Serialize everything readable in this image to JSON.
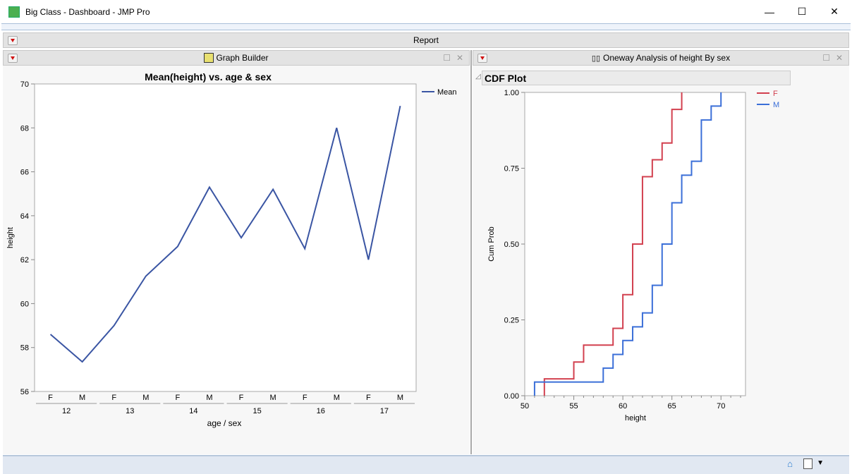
{
  "window": {
    "title": "Big Class - Dashboard - JMP Pro",
    "minimize": "—",
    "maximize": "☐",
    "close": "✕"
  },
  "report_bar": {
    "label": "Report"
  },
  "left_panel": {
    "title": "Graph Builder",
    "icon": "graph-builder-icon"
  },
  "right_panel": {
    "title": "Oneway Analysis of height By sex",
    "icon": "oneway-icon",
    "section": "CDF Plot"
  },
  "colors": {
    "mean_line": "#3a55a3",
    "F": "#d2404f",
    "M": "#3b6fd8"
  },
  "chart_data": [
    {
      "type": "line",
      "title": "Mean(height) vs. age & sex",
      "xlabel": "age / sex",
      "ylabel": "height",
      "ylim": [
        56,
        70
      ],
      "yticks": [
        56,
        58,
        60,
        62,
        64,
        66,
        68,
        70
      ],
      "groups": [
        "12",
        "13",
        "14",
        "15",
        "16",
        "17"
      ],
      "subcategories": [
        "F",
        "M"
      ],
      "series": [
        {
          "name": "Mean",
          "values": [
            58.6,
            57.35,
            59.0,
            61.25,
            62.6,
            65.3,
            63.0,
            65.2,
            62.5,
            68.0,
            62.0,
            69.0
          ]
        }
      ],
      "legend": "right"
    },
    {
      "type": "line",
      "step": true,
      "title": "CDF Plot",
      "xlabel": "height",
      "ylabel": "Cum Prob",
      "xlim": [
        50,
        72.5
      ],
      "ylim": [
        0,
        1
      ],
      "xticks": [
        50,
        55,
        60,
        65,
        70
      ],
      "yticks": [
        "0.00",
        "0.25",
        "0.50",
        "0.75",
        "1.00"
      ],
      "series": [
        {
          "name": "F",
          "points": [
            [
              52,
              0.0556
            ],
            [
              55,
              0.111
            ],
            [
              56,
              0.167
            ],
            [
              59,
              0.222
            ],
            [
              60,
              0.333
            ],
            [
              61,
              0.5
            ],
            [
              62,
              0.722
            ],
            [
              63,
              0.778
            ],
            [
              64,
              0.833
            ],
            [
              65,
              0.944
            ],
            [
              66,
              1.0
            ]
          ]
        },
        {
          "name": "M",
          "points": [
            [
              51,
              0.045
            ],
            [
              58,
              0.091
            ],
            [
              59,
              0.136
            ],
            [
              60,
              0.182
            ],
            [
              61,
              0.227
            ],
            [
              62,
              0.273
            ],
            [
              63,
              0.364
            ],
            [
              64,
              0.5
            ],
            [
              65,
              0.636
            ],
            [
              66,
              0.727
            ],
            [
              67,
              0.773
            ],
            [
              68,
              0.909
            ],
            [
              69,
              0.955
            ],
            [
              70,
              1.0
            ]
          ]
        }
      ],
      "legend": "right"
    }
  ]
}
